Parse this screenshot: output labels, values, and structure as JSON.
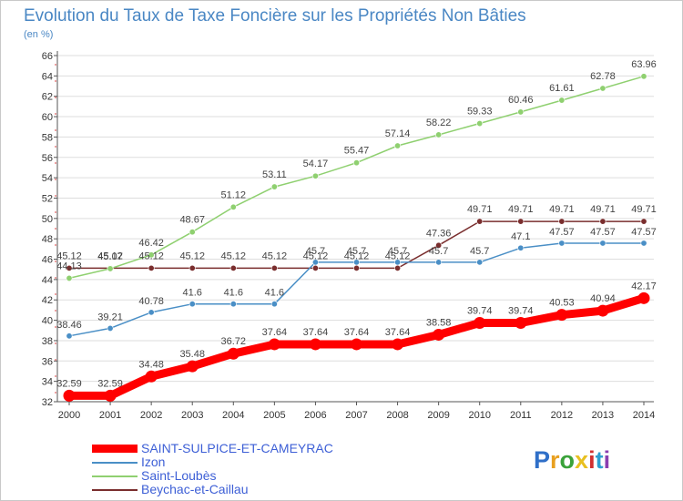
{
  "title": "Evolution du Taux de Taxe Foncière sur les Propriétés Non Bâties",
  "subtitle": "(en %)",
  "logo": "Proxiti",
  "chart_data": {
    "type": "line",
    "title": "Evolution du Taux de Taxe Foncière sur les Propriétés Non Bâties",
    "ylabel": "(en %)",
    "xlabel": "",
    "x": [
      "2000",
      "2001",
      "2002",
      "2003",
      "2004",
      "2005",
      "2006",
      "2007",
      "2008",
      "2009",
      "2010",
      "2011",
      "2012",
      "2013",
      "2014"
    ],
    "y_ticks": [
      "32",
      "34",
      "36",
      "38",
      "40",
      "42",
      "44",
      "46",
      "48",
      "50",
      "52",
      "54",
      "56",
      "58",
      "60",
      "62",
      "64",
      "66"
    ],
    "ylim": [
      32,
      66
    ],
    "grid": "horizontal",
    "legend": "bottom-left",
    "series": [
      {
        "name": "SAINT-SULPICE-ET-CAMEYRAC",
        "color": "#ff0000",
        "width": 9,
        "values": [
          32.59,
          32.59,
          34.48,
          35.48,
          36.72,
          37.64,
          37.64,
          37.64,
          37.64,
          38.58,
          39.74,
          39.74,
          40.53,
          40.94,
          42.17
        ],
        "labels": [
          "32.59",
          "32.59",
          "34.48",
          "35.48",
          "36.72",
          "37.64",
          "37.64",
          "37.64",
          "37.64",
          "38.58",
          "39.74",
          "39.74",
          "40.53",
          "40.94",
          "42.17"
        ]
      },
      {
        "name": "Izon",
        "color": "#4a8fc6",
        "width": 1.5,
        "values": [
          38.46,
          39.21,
          40.78,
          41.6,
          41.6,
          41.6,
          45.7,
          45.7,
          45.7,
          45.7,
          45.7,
          47.1,
          47.57,
          47.57,
          47.57
        ],
        "labels": [
          "38.46",
          "39.21",
          "40.78",
          "41.6",
          "41.6",
          "41.6",
          "45.7",
          "45.7",
          "45.7",
          "45.7",
          "45.7",
          "47.1",
          "47.57",
          "47.57",
          "47.57"
        ]
      },
      {
        "name": "Saint-Loubès",
        "color": "#8fd070",
        "width": 1.5,
        "values": [
          44.13,
          45.07,
          46.42,
          48.67,
          51.12,
          53.11,
          54.17,
          55.47,
          57.14,
          58.22,
          59.33,
          60.46,
          61.61,
          62.78,
          63.96
        ],
        "labels": [
          "44.13",
          "45.07",
          "46.42",
          "48.67",
          "51.12",
          "53.11",
          "54.17",
          "55.47",
          "57.14",
          "58.22",
          "59.33",
          "60.46",
          "61.61",
          "62.78",
          "63.96"
        ]
      },
      {
        "name": "Beychac-et-Caillau",
        "color": "#7a2e2e",
        "width": 1.5,
        "values": [
          45.12,
          45.12,
          45.12,
          45.12,
          45.12,
          45.12,
          45.12,
          45.12,
          45.12,
          47.36,
          49.71,
          49.71,
          49.71,
          49.71,
          49.71
        ],
        "labels": [
          "45.12",
          "45.12",
          "45.12",
          "45.12",
          "45.12",
          "45.12",
          "45.12",
          "45.12",
          "45.12",
          "47.36",
          "49.71",
          "49.71",
          "49.71",
          "49.71",
          "49.71"
        ]
      }
    ]
  }
}
